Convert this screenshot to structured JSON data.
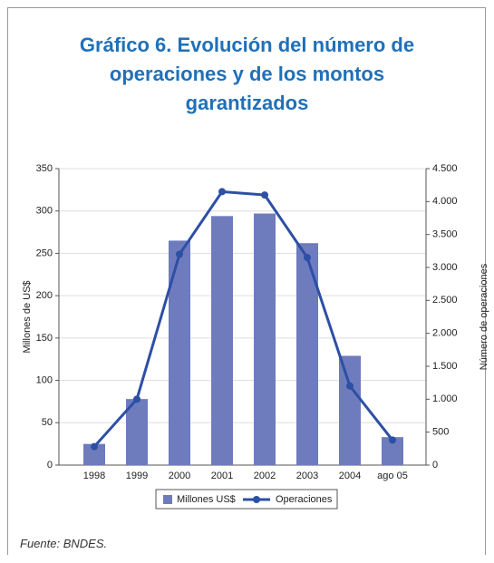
{
  "chart_data": {
    "type": "bar_line",
    "title": "Gráfico 6. Evolución del número de operaciones y de los montos garantizados",
    "categories": [
      "1998",
      "1999",
      "2000",
      "2001",
      "2002",
      "2003",
      "2004",
      "ago 05"
    ],
    "series": [
      {
        "name": "Millones US$",
        "type": "bar",
        "color": "#6e7cbd",
        "axis": "y",
        "values": [
          25,
          78,
          265,
          294,
          297,
          262,
          129,
          33
        ]
      },
      {
        "name": "Operaciones",
        "type": "line",
        "color": "#2d4fa5",
        "axis": "y2",
        "values": [
          280,
          1000,
          3200,
          4150,
          4100,
          3150,
          1200,
          380
        ]
      }
    ],
    "ylabel": "Millones de US$",
    "y2label": "Número de operaciones",
    "ylim": [
      0,
      350
    ],
    "yticks": [
      0,
      50,
      100,
      150,
      200,
      250,
      300,
      350
    ],
    "y2lim": [
      0,
      4500
    ],
    "y2ticks": [
      0,
      500,
      {
        "value": 1000,
        "label": "1.000"
      },
      {
        "value": 1500,
        "label": "1.500"
      },
      {
        "value": 2000,
        "label": "2.000"
      },
      {
        "value": 2500,
        "label": "2.500"
      },
      {
        "value": 3000,
        "label": "3.000"
      },
      {
        "value": 3500,
        "label": "3.500"
      },
      {
        "value": 4000,
        "label": "4.000"
      },
      {
        "value": 4500,
        "label": "4.500"
      }
    ],
    "grid": true,
    "legend": "bottom",
    "source": "Fuente: BNDES."
  }
}
